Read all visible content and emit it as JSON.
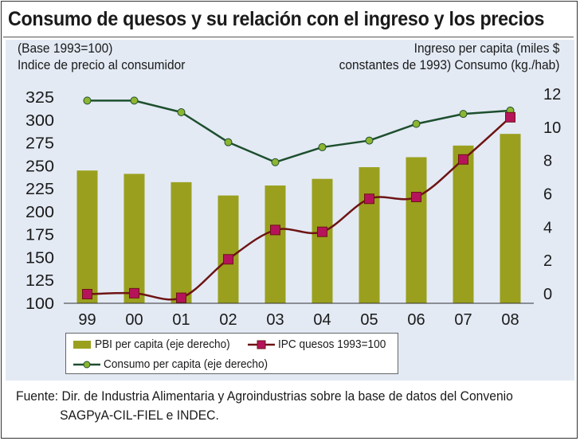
{
  "chart_data": {
    "type": "bar",
    "title": "Consumo de quesos y su relación con el ingreso y los precios",
    "left_axis_note": [
      "(Base 1993=100)",
      "Indice de precio al consumidor"
    ],
    "right_axis_note": [
      "Ingreso per capita (miles $",
      "constantes de 1993) Consumo (kg./hab)"
    ],
    "categories": [
      "99",
      "00",
      "01",
      "02",
      "03",
      "04",
      "05",
      "06",
      "07",
      "08"
    ],
    "y_left": {
      "min": 100,
      "max": 325,
      "ticks": [
        "325",
        "300",
        "275",
        "250",
        "225",
        "200",
        "175",
        "150",
        "125",
        "100"
      ]
    },
    "y_right": {
      "min": 0,
      "max": 12,
      "ticks": [
        "12",
        "10",
        "8",
        "6",
        "4",
        "2",
        "0"
      ]
    },
    "series": [
      {
        "name": "PBI per capita (eje derecho)",
        "kind": "bar",
        "axis": "right",
        "color": "#9aa01e",
        "values": [
          7.4,
          7.2,
          6.7,
          5.9,
          6.5,
          6.9,
          7.6,
          8.2,
          8.9,
          9.6
        ]
      },
      {
        "name": "IPC quesos 1993=100",
        "kind": "line",
        "axis": "left",
        "color": "#6e1414",
        "marker_color": "#b5145a",
        "values": [
          110,
          111,
          106,
          148,
          180,
          178,
          214,
          216,
          257,
          303
        ]
      },
      {
        "name": "Consumo per capita (eje derecho)",
        "kind": "line",
        "axis": "right",
        "color": "#1e4f2e",
        "marker_color": "#8db532",
        "values": [
          11.6,
          11.6,
          10.9,
          9.1,
          7.9,
          8.8,
          9.2,
          10.2,
          10.8,
          11.0
        ]
      }
    ],
    "grid": false,
    "legend_position": "bottom-left"
  },
  "source": {
    "line1": "Fuente: Dir. de Industria Alimentaria y Agroindustrias sobre la base de datos del Convenio",
    "line2": "SAGPyA-CIL-FIEL e INDEC."
  }
}
